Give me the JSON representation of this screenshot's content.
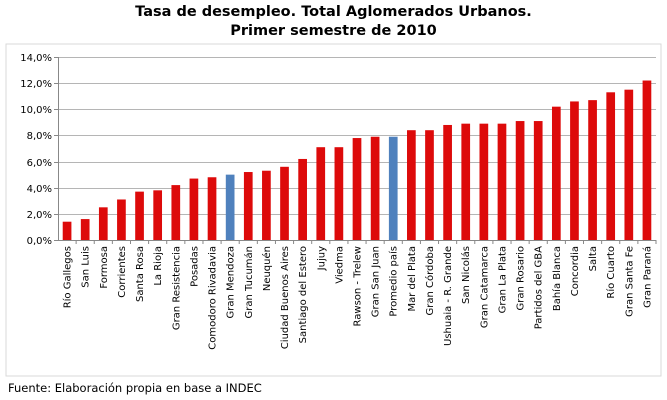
{
  "chart_data": {
    "type": "bar",
    "title": [
      "Tasa de desempleo. Total Aglomerados Urbanos.",
      "Primer semestre de 2010"
    ],
    "xlabel": "",
    "ylabel": "",
    "ylim": [
      0,
      14
    ],
    "ytick_labels": [
      "0,0%",
      "2,0%",
      "4,0%",
      "6,0%",
      "8,0%",
      "10,0%",
      "12,0%",
      "14,0%"
    ],
    "grid": true,
    "legend": "none",
    "categories": [
      "Río Gallegos",
      "San Luis",
      "Formosa",
      "Corrientes",
      "Santa Rosa",
      "La Rioja",
      "Gran Resistencia",
      "Posadas",
      "Comodoro Rivadavia",
      "Gran Mendoza",
      "Gran Tucumán",
      "Neuquén",
      "Ciudad Buenos Aires",
      "Santiago del Estero",
      "Jujuy",
      "Viedma",
      "Rawson - Trelew",
      "Gran San Juan",
      "Promedio país",
      "Mar del Plata",
      "Gran Córdoba",
      "Ushuaia - R. Grande",
      "San Nicolás",
      "Gran Catamarca",
      "Gran La Plata",
      "Gran Rosario",
      "Partidos del GBA",
      "Bahía Blanca",
      "Concordia",
      "Salta",
      "Río Cuarto",
      "Gran Santa Fe",
      "Gran Paraná"
    ],
    "values": [
      1.4,
      1.6,
      2.5,
      3.1,
      3.7,
      3.8,
      4.2,
      4.7,
      4.8,
      5.0,
      5.2,
      5.3,
      5.6,
      6.2,
      7.1,
      7.1,
      7.8,
      7.9,
      7.9,
      8.4,
      8.4,
      8.8,
      8.9,
      8.9,
      8.9,
      9.1,
      9.1,
      10.2,
      10.6,
      10.7,
      11.3,
      11.5,
      12.2
    ],
    "highlight_categories": [
      "Gran Mendoza",
      "Promedio país"
    ],
    "colors": {
      "bar": "#dd0a0a",
      "highlight": "#4f81bd",
      "grid": "#b5b5b5",
      "axis": "#888888"
    }
  },
  "source_note": "Fuente: Elaboración propia en base a INDEC"
}
